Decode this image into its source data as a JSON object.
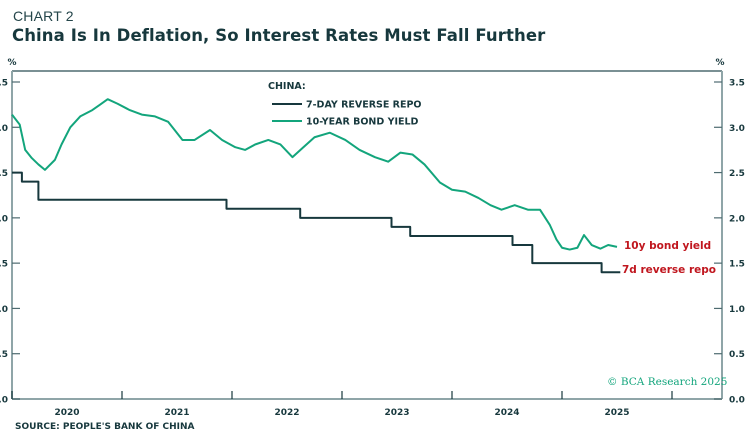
{
  "header": {
    "kicker": "CHART 2",
    "title": "China Is In Deflation, So Interest Rates Must Fall Further"
  },
  "footer": {
    "source": "SOURCE: PEOPLE'S BANK OF CHINA",
    "credit": "© BCA Research 2025"
  },
  "colors": {
    "repo": "#17383d",
    "bond": "#13a57c",
    "annotation": "#c0161e",
    "axis": "#8fa5a8"
  },
  "chart_data": {
    "type": "line",
    "title": "China Is In Deflation, So Interest Rates Must Fall Further",
    "xlabel": "",
    "ylabel": "%",
    "ylabel_right": "%",
    "ylim": [
      0,
      3.5
    ],
    "xlim": [
      2020.0,
      2026.5
    ],
    "y_ticks": [
      "0.0",
      "0.5",
      "1.0",
      "1.5",
      "2.0",
      "2.5",
      "3.0",
      "3.5"
    ],
    "y_tick_values": [
      0,
      0.5,
      1.0,
      1.5,
      2.0,
      2.5,
      3.0,
      3.5
    ],
    "x_tick_labels": [
      "2020",
      "2021",
      "2022",
      "2023",
      "2024",
      "2025"
    ],
    "grid": false,
    "legend": {
      "title": "CHINA:",
      "placement": "top-center",
      "entries": [
        "7-DAY REVERSE REPO",
        "10-YEAR BOND YIELD"
      ]
    },
    "annotations": [
      {
        "text": "10y bond yield",
        "series": "10-YEAR BOND YIELD"
      },
      {
        "text": "7d reverse repo",
        "series": "7-DAY REVERSE REPO"
      }
    ],
    "series": [
      {
        "name": "7-DAY REVERSE REPO",
        "step": true,
        "x": [
          2020.0,
          2020.09,
          2020.24,
          2021.95,
          2022.62,
          2023.45,
          2023.62,
          2024.55,
          2024.73,
          2025.36,
          2025.53
        ],
        "y": [
          2.5,
          2.4,
          2.2,
          2.1,
          2.0,
          1.9,
          1.8,
          1.7,
          1.5,
          1.4,
          1.4
        ]
      },
      {
        "name": "10-YEAR BOND YIELD",
        "step": false,
        "x": [
          2020.0,
          2020.07,
          2020.12,
          2020.18,
          2020.24,
          2020.3,
          2020.39,
          2020.45,
          2020.53,
          2020.62,
          2020.73,
          2020.8,
          2020.87,
          2020.96,
          2021.07,
          2021.18,
          2021.3,
          2021.42,
          2021.55,
          2021.66,
          2021.8,
          2021.91,
          2022.03,
          2022.12,
          2022.21,
          2022.33,
          2022.44,
          2022.55,
          2022.64,
          2022.75,
          2022.89,
          2023.03,
          2023.16,
          2023.3,
          2023.42,
          2023.53,
          2023.64,
          2023.75,
          2023.89,
          2024.0,
          2024.12,
          2024.24,
          2024.35,
          2024.45,
          2024.57,
          2024.69,
          2024.8,
          2024.89,
          2024.95,
          2025.0,
          2025.07,
          2025.14,
          2025.2,
          2025.27,
          2025.35,
          2025.42,
          2025.5
        ],
        "y": [
          3.14,
          3.03,
          2.75,
          2.66,
          2.59,
          2.53,
          2.64,
          2.81,
          3.0,
          3.12,
          3.19,
          3.25,
          3.31,
          3.26,
          3.19,
          3.14,
          3.12,
          3.06,
          2.86,
          2.86,
          2.97,
          2.86,
          2.78,
          2.75,
          2.81,
          2.86,
          2.81,
          2.67,
          2.77,
          2.89,
          2.94,
          2.86,
          2.75,
          2.67,
          2.62,
          2.72,
          2.7,
          2.59,
          2.39,
          2.31,
          2.29,
          2.22,
          2.14,
          2.09,
          2.14,
          2.09,
          2.09,
          1.92,
          1.76,
          1.67,
          1.65,
          1.67,
          1.81,
          1.7,
          1.66,
          1.7,
          1.68
        ]
      }
    ]
  }
}
